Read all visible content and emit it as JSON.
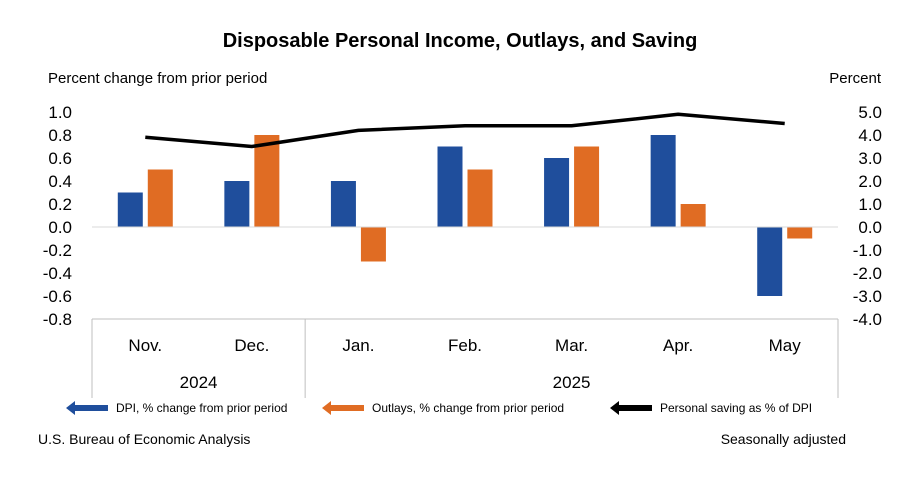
{
  "chart_data": {
    "type": "bar",
    "title": "Disposable Personal Income, Outlays, and Saving",
    "ylabel_left": "Percent change from prior period",
    "ylabel_right": "Percent",
    "categories": [
      "Nov.",
      "Dec.",
      "Jan.",
      "Feb.",
      "Mar.",
      "Apr.",
      "May"
    ],
    "year_groups": [
      {
        "label": "2024",
        "categories": [
          "Nov.",
          "Dec."
        ]
      },
      {
        "label": "2025",
        "categories": [
          "Jan.",
          "Feb.",
          "Mar.",
          "Apr.",
          "May"
        ]
      }
    ],
    "ylim_left": [
      -0.8,
      1.0
    ],
    "ylim_right": [
      -4.0,
      5.0
    ],
    "yticks_left": [
      "1.0",
      "0.8",
      "0.6",
      "0.4",
      "0.2",
      "0.0",
      "-0.2",
      "-0.4",
      "-0.6",
      "-0.8"
    ],
    "yticks_right": [
      "5.0",
      "4.0",
      "3.0",
      "2.0",
      "1.0",
      "0.0",
      "-1.0",
      "-2.0",
      "-3.0",
      "-4.0"
    ],
    "series": [
      {
        "name": "DPI, % change from prior period",
        "type": "bar",
        "axis": "left",
        "color": "#1f4e9c",
        "values": [
          0.3,
          0.4,
          0.4,
          0.7,
          0.6,
          0.8,
          -0.6
        ]
      },
      {
        "name": "Outlays, % change from prior period",
        "type": "bar",
        "axis": "left",
        "color": "#e06c23",
        "values": [
          0.5,
          0.8,
          -0.3,
          0.5,
          0.7,
          0.2,
          -0.1
        ]
      },
      {
        "name": "Personal saving as % of DPI",
        "type": "line",
        "axis": "right",
        "color": "#000000",
        "values": [
          3.9,
          3.5,
          4.2,
          4.4,
          4.4,
          4.9,
          4.5
        ]
      }
    ],
    "grid": false,
    "legend_position": "bottom"
  },
  "notes": {
    "source": "U.S. Bureau of Economic Analysis",
    "adjustment": "Seasonally adjusted"
  }
}
